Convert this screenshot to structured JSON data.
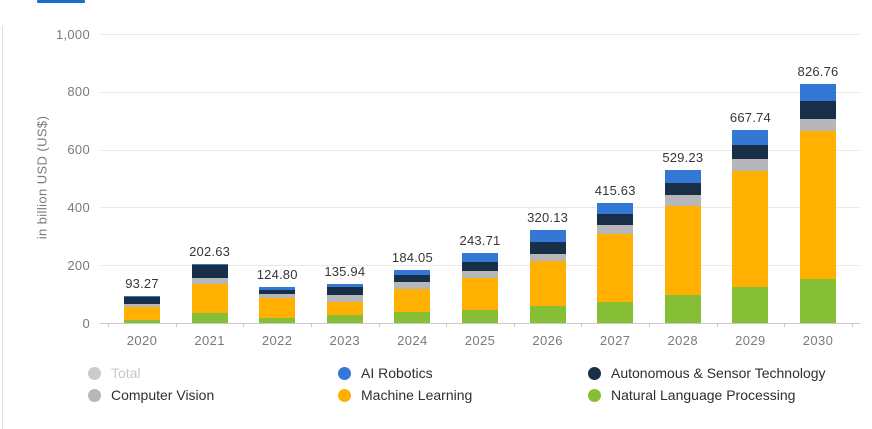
{
  "header": {
    "tab_indicator_color": "#1a6dc9"
  },
  "colors": {
    "grid": "#e9e9ec",
    "axis_line": "#c9c9cd",
    "axis_text": "#7a7a7e",
    "value_label_text": "#37373b",
    "ai_robotics": "#3378d5",
    "autonomous_sensor_tech": "#182f47",
    "computer_vision": "#b7b7ba",
    "machine_learning": "#ffb000",
    "natural_language_processing": "#86be35",
    "total_disabled": "#cbcbcf"
  },
  "chart_data": {
    "type": "bar",
    "stacked": true,
    "ylabel": "in billion USD (US$)",
    "ylim": [
      0,
      1000
    ],
    "yticks": [
      0,
      200,
      400,
      600,
      800,
      1000
    ],
    "grid": true,
    "legend_position": "bottom",
    "categories": [
      "2020",
      "2021",
      "2022",
      "2023",
      "2024",
      "2025",
      "2026",
      "2027",
      "2028",
      "2029",
      "2030"
    ],
    "totals": [
      93.27,
      202.63,
      124.8,
      135.94,
      184.05,
      243.71,
      320.13,
      415.63,
      529.23,
      667.74,
      826.76
    ],
    "total_labels": [
      "93.27",
      "202.63",
      "124.80",
      "135.94",
      "184.05",
      "243.71",
      "320.13",
      "415.63",
      "529.23",
      "667.74",
      "826.76"
    ],
    "series": [
      {
        "name": "Natural Language Processing",
        "color": "#86be35",
        "values": [
          11.27,
          34.13,
          15.8,
          27.94,
          37.0,
          45.0,
          59.13,
          74.0,
          96.0,
          126.0,
          152.0
        ]
      },
      {
        "name": "Machine Learning",
        "color": "#ffb000",
        "values": [
          43.0,
          100.0,
          69.0,
          44.0,
          79.05,
          109.71,
          156.0,
          234.63,
          307.23,
          398.74,
          512.76
        ]
      },
      {
        "name": "Computer Vision",
        "color": "#b7b7ba",
        "values": [
          10.0,
          21.0,
          14.0,
          25.0,
          25.0,
          26.0,
          22.0,
          30.0,
          40.0,
          42.0,
          40.0
        ]
      },
      {
        "name": "Autonomous & Sensor Technology",
        "color": "#182f47",
        "values": [
          25.0,
          44.0,
          17.0,
          26.0,
          26.0,
          31.0,
          44.0,
          39.0,
          42.0,
          49.0,
          64.0
        ]
      },
      {
        "name": "AI Robotics",
        "color": "#3378d5",
        "values": [
          4.0,
          3.5,
          9.0,
          13.0,
          17.0,
          32.0,
          39.0,
          38.0,
          44.0,
          52.0,
          58.0
        ]
      }
    ]
  },
  "legend": {
    "columns": [
      [
        {
          "label": "Total",
          "color": "#cbcbcf",
          "disabled": true
        },
        {
          "label": "Computer Vision",
          "color": "#b7b7ba",
          "disabled": false
        }
      ],
      [
        {
          "label": "AI Robotics",
          "color": "#3378d5",
          "disabled": false
        },
        {
          "label": "Machine Learning",
          "color": "#ffb000",
          "disabled": false
        }
      ],
      [
        {
          "label": "Autonomous & Sensor Technology",
          "color": "#182f47",
          "disabled": false
        },
        {
          "label": "Natural Language Processing",
          "color": "#86be35",
          "disabled": false
        }
      ]
    ]
  }
}
